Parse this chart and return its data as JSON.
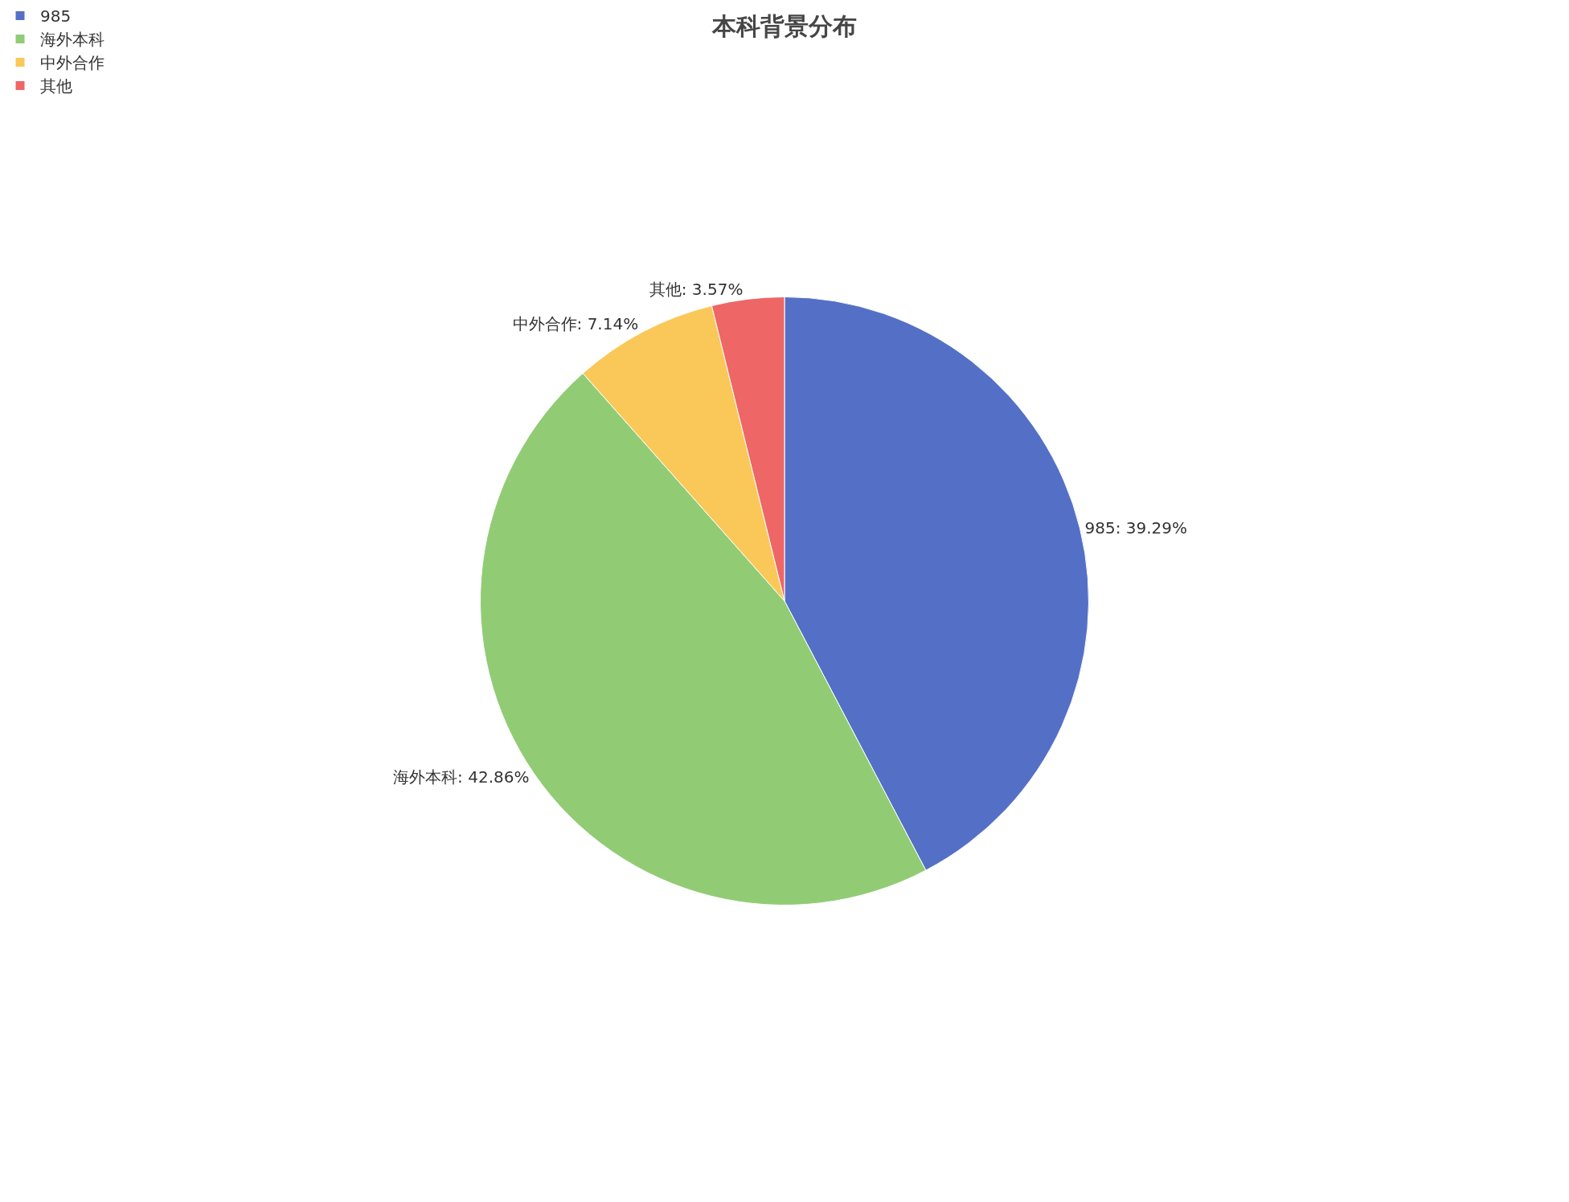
{
  "chart_data": {
    "type": "pie",
    "title": "本科背景分布",
    "categories": [
      "985",
      "海外本科",
      "中外合作",
      "其他"
    ],
    "values": [
      39.29,
      42.86,
      7.14,
      3.57
    ],
    "colors": [
      "#5470c6",
      "#91cc75",
      "#fac858",
      "#ee6666"
    ],
    "value_labels": [
      "985: 39.29%",
      "海外本科: 42.86%",
      "中外合作: 7.14%",
      "其他: 3.57%"
    ],
    "legend": "top left"
  }
}
